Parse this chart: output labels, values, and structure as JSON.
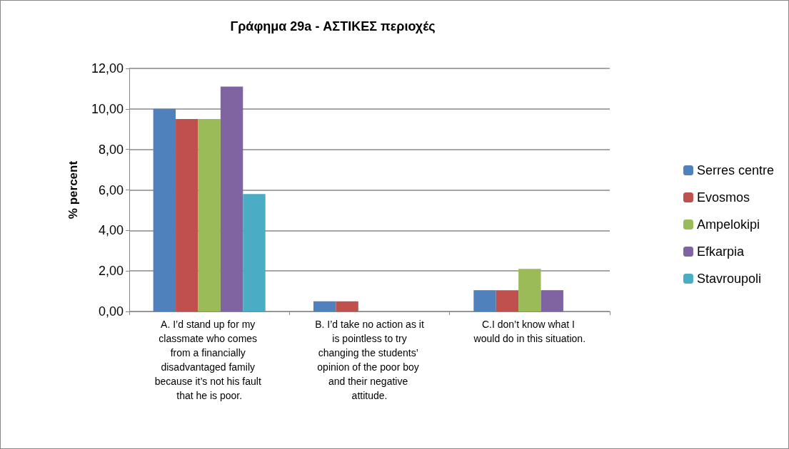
{
  "chart_data": {
    "type": "bar",
    "title": "Γράφημα 29a - ΑΣΤΙΚΕΣ περιοχές",
    "ylabel": "% percent",
    "categories": [
      "A. I’d stand up for my classmate who comes from a financially disadvantaged family because it’s not his fault that he is poor.",
      "B. I’d take no action as it is pointless to try changing the students’ opinion of the poor boy and their negative attitude.",
      "C.I don’t know what I would do in this situation."
    ],
    "series": [
      {
        "name": "Serres centre",
        "color": "#4f81bd",
        "values": [
          10.0,
          0.5,
          1.05
        ]
      },
      {
        "name": "Evosmos",
        "color": "#c0504d",
        "values": [
          9.5,
          0.5,
          1.05
        ]
      },
      {
        "name": "Ampelokipi",
        "color": "#9bbb59",
        "values": [
          9.5,
          0,
          2.1
        ]
      },
      {
        "name": "Efkarpia",
        "color": "#8064a2",
        "values": [
          11.1,
          0,
          1.05
        ]
      },
      {
        "name": "Stavroupoli",
        "color": "#4bacc6",
        "values": [
          5.8,
          0,
          0
        ]
      }
    ],
    "ylim": [
      0,
      12
    ],
    "yticks": [
      {
        "value": 0,
        "label": "0,00"
      },
      {
        "value": 2,
        "label": "2,00"
      },
      {
        "value": 4,
        "label": "4,00"
      },
      {
        "value": 6,
        "label": "6,00"
      },
      {
        "value": 8,
        "label": "8,00"
      },
      {
        "value": 10,
        "label": "10,00"
      },
      {
        "value": 12,
        "label": "12,00"
      }
    ],
    "grid": "y",
    "legend": "right"
  }
}
